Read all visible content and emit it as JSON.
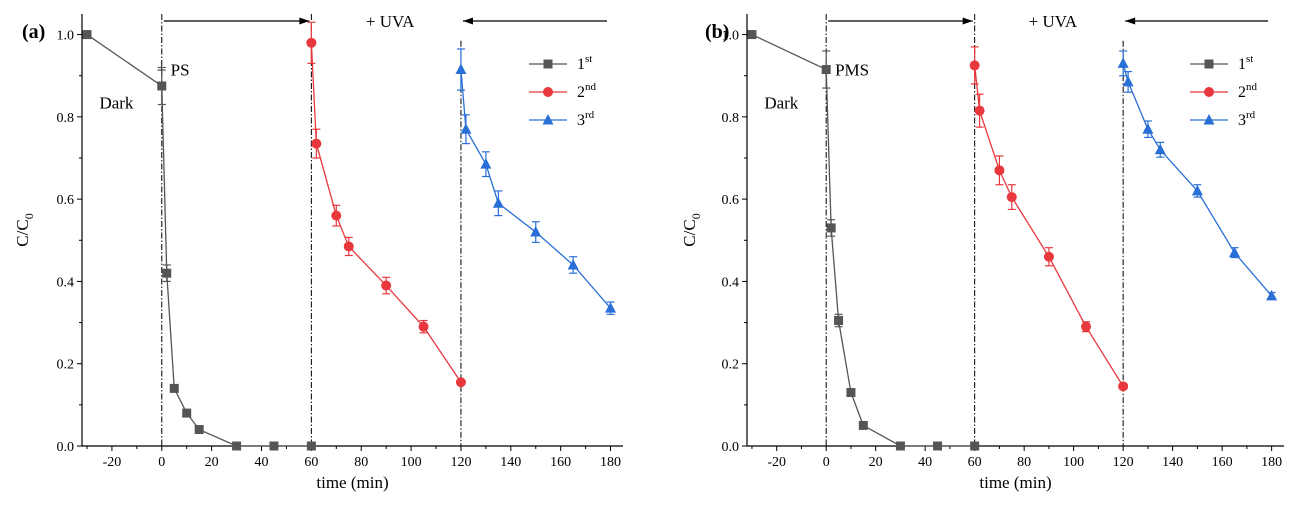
{
  "chart_data": [
    {
      "type": "line",
      "panel_label": "(a)",
      "xlabel": "time (min)",
      "ylabel_main": "C/C",
      "ylabel_sub": "0",
      "xlim": [
        -32,
        185
      ],
      "ylim": [
        0,
        1.05
      ],
      "xticks": [
        -20,
        0,
        20,
        40,
        60,
        80,
        100,
        120,
        140,
        160,
        180
      ],
      "yticks": [
        0.0,
        0.2,
        0.4,
        0.6,
        0.8,
        1.0
      ],
      "ytick_labels": [
        "0.0",
        "0.2",
        "0.4",
        "0.6",
        "0.8",
        "1.0"
      ],
      "vlines": [
        0,
        60,
        120
      ],
      "annotations": {
        "dark": "Dark",
        "oxidant": "+ PS",
        "light": "+ UVA"
      },
      "legend_position": "top-right",
      "series": [
        {
          "name": "1",
          "name_sup": "st",
          "color": "#555555",
          "marker": "square",
          "x": [
            -30,
            0,
            2,
            5,
            10,
            15,
            30,
            45,
            60
          ],
          "y": [
            1.0,
            0.875,
            0.42,
            0.14,
            0.08,
            0.04,
            0.0,
            0.0,
            0.0
          ],
          "err": [
            0,
            0.045,
            0.02,
            0,
            0,
            0,
            0,
            0,
            0
          ]
        },
        {
          "name": "2",
          "name_sup": "nd",
          "color": "#e8383d",
          "marker": "circle",
          "x": [
            60,
            62,
            70,
            75,
            90,
            105,
            120
          ],
          "y": [
            0.98,
            0.735,
            0.56,
            0.485,
            0.39,
            0.29,
            0.155
          ],
          "err": [
            0.05,
            0.035,
            0.025,
            0.022,
            0.02,
            0.015,
            0
          ]
        },
        {
          "name": "3",
          "name_sup": "rd",
          "color": "#2a6fd6",
          "marker": "triangle",
          "x": [
            120,
            122,
            130,
            135,
            150,
            165,
            180
          ],
          "y": [
            0.915,
            0.77,
            0.685,
            0.59,
            0.52,
            0.44,
            0.335
          ],
          "err": [
            0.05,
            0.035,
            0.03,
            0.03,
            0.025,
            0.02,
            0.015
          ]
        }
      ]
    },
    {
      "type": "line",
      "panel_label": "(b)",
      "xlabel": "time (min)",
      "ylabel_main": "C/C",
      "ylabel_sub": "0",
      "xlim": [
        -32,
        185
      ],
      "ylim": [
        0,
        1.05
      ],
      "xticks": [
        -20,
        0,
        20,
        40,
        60,
        80,
        100,
        120,
        140,
        160,
        180
      ],
      "yticks": [
        0.0,
        0.2,
        0.4,
        0.6,
        0.8,
        1.0
      ],
      "ytick_labels": [
        "0.0",
        "0.2",
        "0.4",
        "0.6",
        "0.8",
        "1.0"
      ],
      "vlines": [
        0,
        60,
        120
      ],
      "annotations": {
        "dark": "Dark",
        "oxidant": "+ PMS",
        "light": "+ UVA"
      },
      "legend_position": "top-right",
      "series": [
        {
          "name": "1",
          "name_sup": "st",
          "color": "#555555",
          "marker": "square",
          "x": [
            -30,
            0,
            2,
            5,
            10,
            15,
            30,
            45,
            60
          ],
          "y": [
            1.0,
            0.915,
            0.53,
            0.305,
            0.13,
            0.05,
            0.0,
            0.0,
            0.0
          ],
          "err": [
            0,
            0.045,
            0.02,
            0.015,
            0,
            0,
            0,
            0,
            0
          ]
        },
        {
          "name": "2",
          "name_sup": "nd",
          "color": "#e8383d",
          "marker": "circle",
          "x": [
            60,
            62,
            70,
            75,
            90,
            105,
            120
          ],
          "y": [
            0.925,
            0.815,
            0.67,
            0.605,
            0.46,
            0.29,
            0.145
          ],
          "err": [
            0.045,
            0.04,
            0.035,
            0.03,
            0.022,
            0.012,
            0
          ]
        },
        {
          "name": "3",
          "name_sup": "rd",
          "color": "#2a6fd6",
          "marker": "triangle",
          "x": [
            120,
            122,
            130,
            135,
            150,
            165,
            180
          ],
          "y": [
            0.93,
            0.885,
            0.77,
            0.72,
            0.62,
            0.47,
            0.365
          ],
          "err": [
            0.03,
            0.025,
            0.02,
            0.018,
            0.015,
            0.012,
            0.008
          ]
        }
      ]
    }
  ]
}
